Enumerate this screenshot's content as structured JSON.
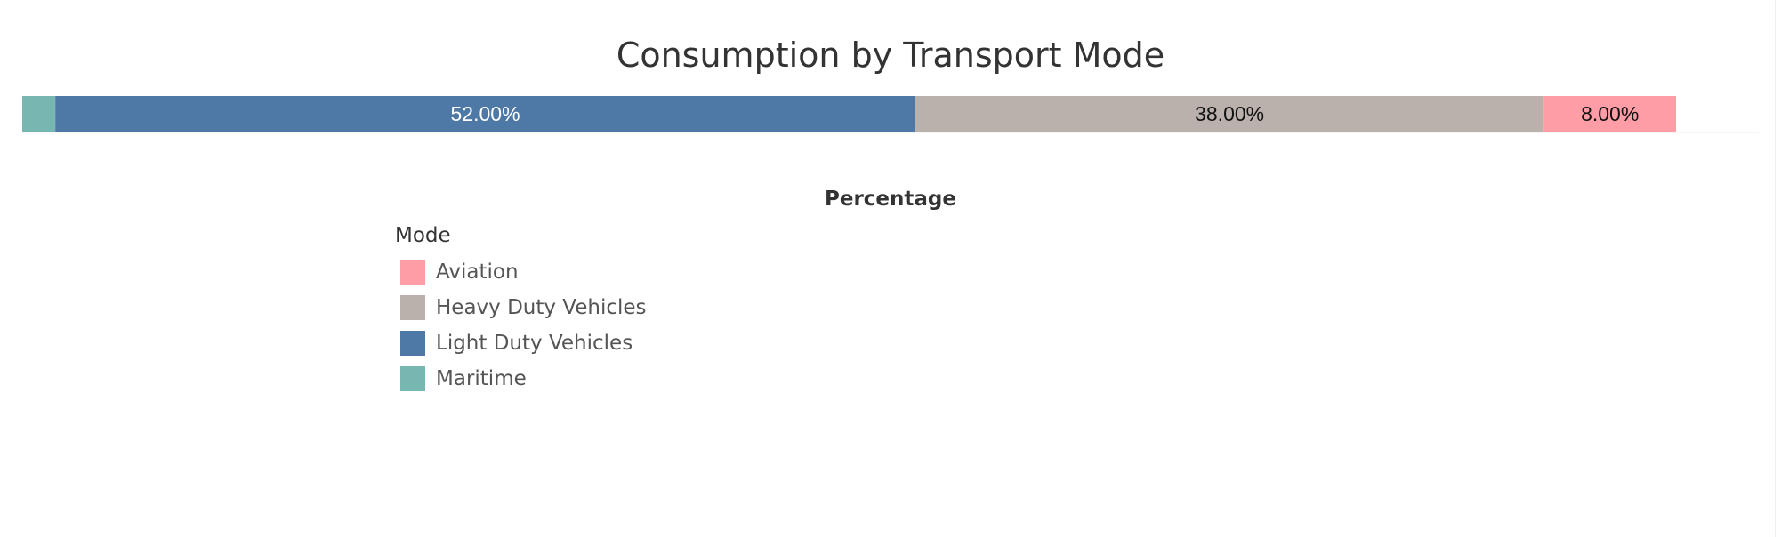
{
  "chart_data": {
    "type": "bar",
    "orientation": "horizontal-stacked",
    "title": "Consumption by Transport Mode",
    "xlabel": "Percentage",
    "ylabel": "",
    "xlim": [
      0,
      105
    ],
    "grid": false,
    "legend_title": "Mode",
    "legend_position": "bottom-left",
    "series": [
      {
        "name": "Maritime",
        "value": 2.0,
        "label": "",
        "color": "#76b7b2",
        "label_color": "#ffffff"
      },
      {
        "name": "Light Duty Vehicles",
        "value": 52.0,
        "label": "52.00%",
        "color": "#4e79a7",
        "label_color": "#ffffff"
      },
      {
        "name": "Heavy Duty Vehicles",
        "value": 38.0,
        "label": "38.00%",
        "color": "#bab0ac",
        "label_color": "#111111"
      },
      {
        "name": "Aviation",
        "value": 8.0,
        "label": "8.00%",
        "color": "#ff9da7",
        "label_color": "#111111"
      }
    ]
  },
  "legend": {
    "items": [
      {
        "name": "Aviation",
        "color": "#ff9da7"
      },
      {
        "name": "Heavy Duty Vehicles",
        "color": "#bab0ac"
      },
      {
        "name": "Light Duty Vehicles",
        "color": "#4e79a7"
      },
      {
        "name": "Maritime",
        "color": "#76b7b2"
      }
    ]
  }
}
